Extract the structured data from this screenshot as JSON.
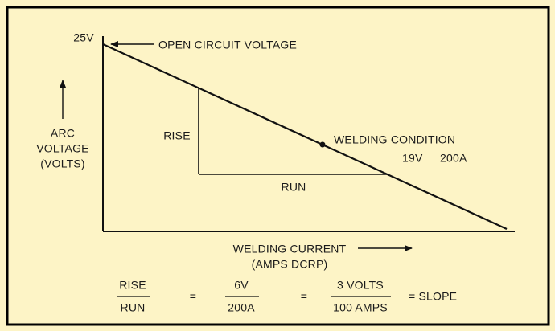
{
  "diagram": {
    "labels": {
      "voltage_point": "25V",
      "open_circuit": "OPEN CIRCUIT VOLTAGE",
      "y_axis": [
        "ARC",
        "VOLTAGE",
        "(VOLTS)"
      ],
      "rise": "RISE",
      "run": "RUN",
      "welding_condition": "WELDING CONDITION",
      "condition_values": [
        "19V",
        "200A"
      ],
      "x_axis": [
        "WELDING CURRENT",
        "(AMPS DCRP)"
      ]
    },
    "formula": {
      "fraction_1": [
        "RISE",
        "RUN"
      ],
      "equals_1": "=",
      "fraction_2": [
        "6V",
        "200A"
      ],
      "equals_2": "=",
      "fraction_3": [
        "3 VOLTS",
        "100 AMPS"
      ],
      "result": "= SLOPE"
    }
  }
}
